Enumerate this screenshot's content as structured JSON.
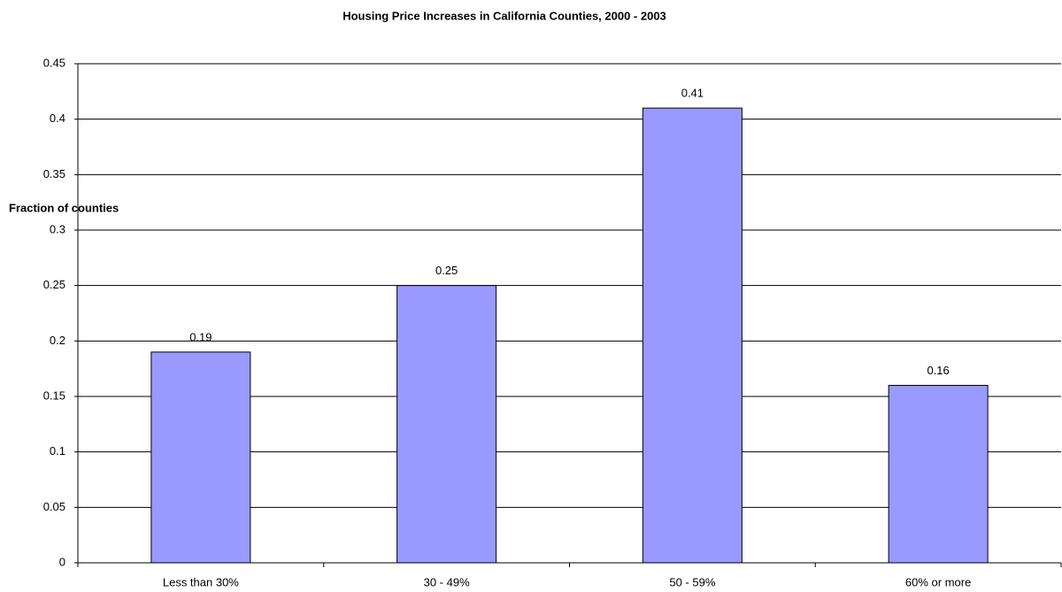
{
  "chart_data": {
    "type": "bar",
    "title": "Housing Price Increases in California Counties, 2000 - 2003",
    "y_label": "Fraction of counties",
    "categories": [
      "Less than 30%",
      "30 - 49%",
      "50 - 59%",
      "60% or more"
    ],
    "values": [
      0.19,
      0.25,
      0.41,
      0.16
    ],
    "color": "#9999ff",
    "ylim": [
      0,
      0.45
    ],
    "yticks": [
      0,
      0.05,
      0.1,
      0.15,
      0.2,
      0.25,
      0.3,
      0.35,
      0.4,
      0.45
    ],
    "grid": true
  }
}
